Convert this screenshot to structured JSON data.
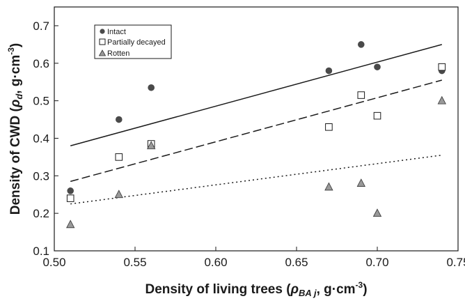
{
  "chart_data": {
    "type": "scatter",
    "xlabel": "Density of living trees",
    "xlabel_symbol": "ρ",
    "xlabel_sub": "BA j",
    "xlabel_unit": ", g·cm",
    "xlabel_exp": "-3",
    "xlabel_close": ")",
    "ylabel": "Density of CWD",
    "ylabel_symbol": "ρ",
    "ylabel_sub": "d",
    "ylabel_unit": ", g·cm",
    "ylabel_exp": "-3",
    "ylabel_close": ")",
    "xlim": [
      0.5,
      0.75
    ],
    "ylim": [
      0.1,
      0.75
    ],
    "xticks": [
      "0.50",
      "0.55",
      "0.60",
      "0.65",
      "0.70",
      "0.75"
    ],
    "yticks": [
      "0.1",
      "0.2",
      "0.3",
      "0.4",
      "0.5",
      "0.6",
      "0.7"
    ],
    "grid": false,
    "legend_position": "top-left",
    "series": [
      {
        "name": "Intact",
        "marker": "circle",
        "color": "#4a4a4a",
        "x": [
          0.51,
          0.54,
          0.56,
          0.67,
          0.69,
          0.7,
          0.74
        ],
        "y": [
          0.26,
          0.45,
          0.535,
          0.58,
          0.65,
          0.59,
          0.58
        ],
        "trend": {
          "style": "solid",
          "x": [
            0.51,
            0.74
          ],
          "y": [
            0.38,
            0.65
          ]
        }
      },
      {
        "name": "Partially decayed",
        "marker": "square",
        "color": "#ffffff",
        "x": [
          0.51,
          0.54,
          0.56,
          0.67,
          0.69,
          0.7,
          0.74
        ],
        "y": [
          0.24,
          0.35,
          0.385,
          0.43,
          0.515,
          0.46,
          0.59
        ],
        "trend": {
          "style": "dashed",
          "x": [
            0.51,
            0.74
          ],
          "y": [
            0.285,
            0.555
          ]
        }
      },
      {
        "name": "Rotten",
        "marker": "triangle",
        "color": "#999999",
        "x": [
          0.51,
          0.54,
          0.56,
          0.67,
          0.69,
          0.7,
          0.74
        ],
        "y": [
          0.17,
          0.25,
          0.38,
          0.27,
          0.28,
          0.2,
          0.5
        ],
        "trend": {
          "style": "dotted",
          "x": [
            0.51,
            0.74
          ],
          "y": [
            0.225,
            0.355
          ]
        }
      }
    ]
  }
}
